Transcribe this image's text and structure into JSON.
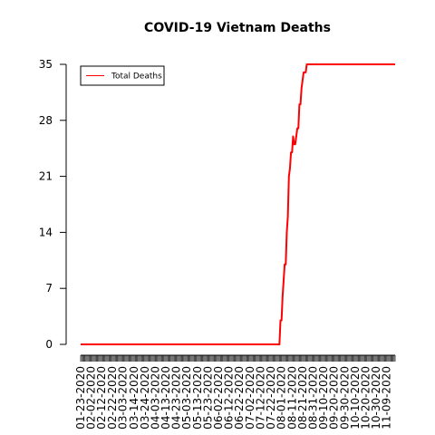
{
  "chart_data": {
    "type": "line",
    "title": "COVID-19 Vietnam Deaths",
    "xlabel": "",
    "ylabel": "",
    "ylim": [
      0,
      35
    ],
    "yticks": [
      0,
      7,
      14,
      21,
      28,
      35
    ],
    "x_tick_labels": [
      "01-23-2020",
      "02-02-2020",
      "02-12-2020",
      "02-22-2020",
      "03-03-2020",
      "03-14-2020",
      "03-24-2020",
      "04-03-2020",
      "04-13-2020",
      "04-23-2020",
      "05-03-2020",
      "05-13-2020",
      "05-23-2020",
      "06-02-2020",
      "06-12-2020",
      "06-22-2020",
      "07-02-2020",
      "07-12-2020",
      "07-22-2020",
      "08-01-2020",
      "08-11-2020",
      "08-21-2020",
      "08-31-2020",
      "09-10-2020",
      "09-20-2020",
      "09-30-2020",
      "10-10-2020",
      "10-20-2020",
      "10-30-2020",
      "11-09-2020"
    ],
    "legend": {
      "position": "top-left",
      "entries": [
        "Total Deaths"
      ]
    },
    "series": [
      {
        "name": "Total Deaths",
        "color": "#ff0000",
        "x": [
          "01-23-2020",
          "07-30-2020",
          "07-31-2020",
          "08-01-2020",
          "08-02-2020",
          "08-03-2020",
          "08-04-2020",
          "08-05-2020",
          "08-06-2020",
          "08-07-2020",
          "08-08-2020",
          "08-09-2020",
          "08-10-2020",
          "08-11-2020",
          "08-12-2020",
          "08-13-2020",
          "08-14-2020",
          "08-15-2020",
          "08-16-2020",
          "08-17-2020",
          "08-18-2020",
          "08-19-2020",
          "08-20-2020",
          "08-21-2020",
          "08-22-2020",
          "08-23-2020",
          "08-24-2020",
          "08-25-2020",
          "08-26-2020",
          "08-27-2020",
          "08-28-2020",
          "08-29-2020",
          "08-30-2020",
          "08-31-2020",
          "09-01-2020",
          "09-02-2020",
          "09-03-2020",
          "11-17-2020"
        ],
        "values": [
          0,
          0,
          3,
          3,
          6,
          8,
          10,
          10,
          14,
          16,
          21,
          22,
          24,
          24,
          26,
          25,
          25,
          26,
          27,
          27,
          30,
          30,
          32,
          33,
          34,
          34,
          34,
          35,
          35,
          35,
          35,
          35,
          35,
          35,
          35,
          35,
          35,
          35
        ]
      }
    ]
  }
}
